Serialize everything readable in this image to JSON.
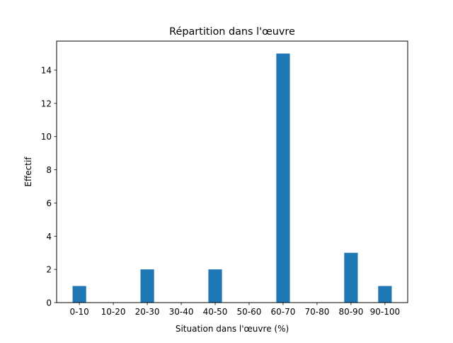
{
  "chart_data": {
    "type": "bar",
    "title": "Répartition dans l'œuvre",
    "xlabel": "Situation dans l'œuvre (%)",
    "ylabel": "Effectif",
    "categories": [
      "0-10",
      "10-20",
      "20-30",
      "30-40",
      "40-50",
      "50-60",
      "60-70",
      "70-80",
      "80-90",
      "90-100"
    ],
    "values": [
      1,
      0,
      2,
      0,
      2,
      0,
      15,
      0,
      3,
      1
    ],
    "ylim": [
      0,
      15.75
    ],
    "yticks": [
      0,
      2,
      4,
      6,
      8,
      10,
      12,
      14
    ],
    "bar_color": "#1f77b4",
    "grid": false,
    "legend": "none"
  }
}
